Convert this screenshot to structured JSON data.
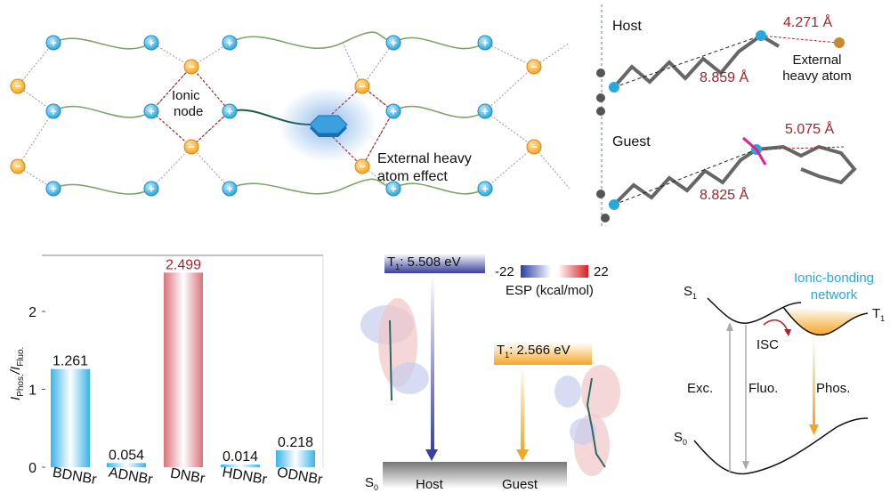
{
  "lattice": {
    "ionic_node_line1": "Ionic",
    "ionic_node_line2": "node",
    "effect_line1": "External heavy",
    "effect_line2": "atom effect",
    "plus_symbol": "+",
    "minus_symbol": "−"
  },
  "structures": {
    "host_label": "Host",
    "guest_label": "Guest",
    "host_distance_long": "8.859 Å",
    "host_distance_short": "4.271 Å",
    "external_line1": "External",
    "external_line2": "heavy atom",
    "guest_distance_long": "8.825 Å",
    "guest_distance_short": "5.075 Å"
  },
  "chart_data": {
    "type": "bar",
    "categories": [
      "BDNBr",
      "ADNBr",
      "DNBr",
      "HDNBr",
      "ODNBr"
    ],
    "values": [
      1.261,
      0.054,
      2.499,
      0.014,
      0.218
    ],
    "value_labels": [
      "1.261",
      "0.054",
      "2.499",
      "0.014",
      "0.218"
    ],
    "highlight": "DNBr",
    "ylabel_main": "I",
    "ylabel_sub1": "Phos.",
    "ylabel_sep": "/I",
    "ylabel_sub2": "Fluo.",
    "yticks": [
      "0",
      "1",
      "2"
    ],
    "ylim": [
      0,
      2.8
    ],
    "colors": {
      "normal": "#3bb4e8",
      "highlight": "#d9737a",
      "highlight_label": "#b0202c"
    }
  },
  "energy": {
    "host_t1": "T",
    "host_t1_sub": "1",
    "host_t1_value": ": 5.508 eV",
    "guest_t1": "T",
    "guest_t1_sub": "1",
    "guest_t1_value": ": 2.566 eV",
    "s0": "S",
    "s0_sub": "0",
    "host": "Host",
    "guest": "Guest",
    "esp_min": "-22",
    "esp_max": "22",
    "esp_label": "ESP (kcal/mol)",
    "colors": {
      "host": "#3a3f9e",
      "guest": "#f5a623"
    }
  },
  "jablonski": {
    "network_line1": "Ionic-bonding",
    "network_line2": "network",
    "s1": "S",
    "s1_sub": "1",
    "t1": "T",
    "t1_sub": "1",
    "s0": "S",
    "s0_sub": "0",
    "isc": "ISC",
    "exc": "Exc.",
    "fluo": "Fluo.",
    "phos": "Phos.",
    "network_color": "#2aa8de"
  }
}
